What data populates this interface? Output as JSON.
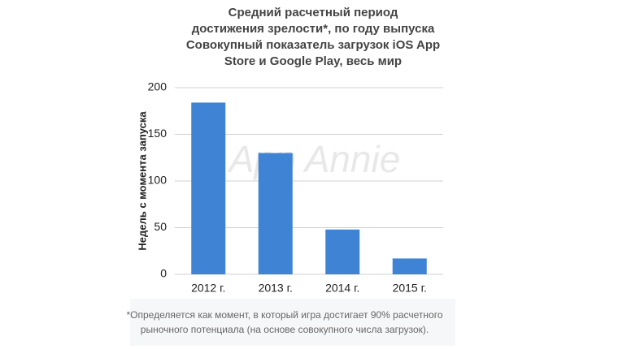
{
  "chart_data": {
    "type": "bar",
    "title": [
      "Средний расчетный период",
      "достижения зрелости*, по году выпуска",
      "Совокупный показатель загрузок iOS App",
      "Store и Google Play, весь мир"
    ],
    "y_label": "Недель с момента запуска",
    "watermark": "App Annie",
    "categories": [
      "2012 г.",
      "2013 г.",
      "2014 г.",
      "2015 г."
    ],
    "values": [
      184,
      130,
      48,
      17
    ],
    "color": "#3f84d4",
    "ylim": [
      0,
      200
    ],
    "yticks": [
      0,
      50,
      100,
      150,
      200
    ],
    "grid": true,
    "footnote": [
      "*Определяется как момент, в который игра достигает 90% расчетного",
      "рыночного потенциала (на основе совокупного числа загрузок)."
    ]
  }
}
